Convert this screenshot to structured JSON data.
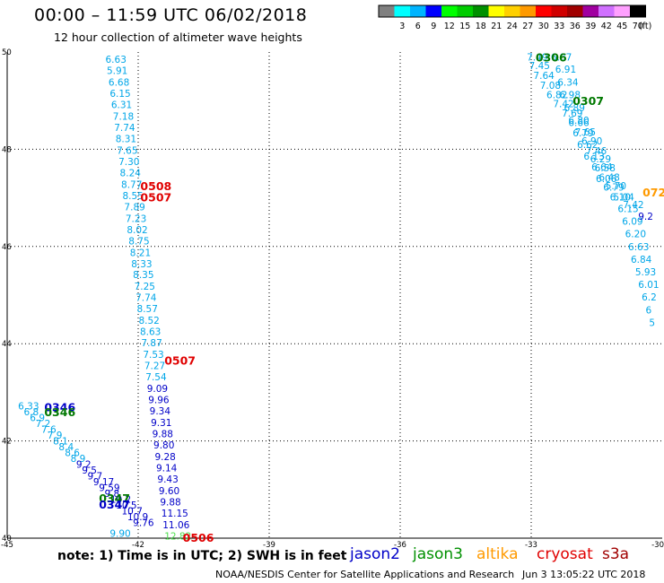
{
  "header": {
    "title": "00:00 – 11:59 UTC 06/02/2018",
    "subtitle": "12 hour collection of altimeter wave heights"
  },
  "legend": {
    "unit_label": "(ft)",
    "bins": [
      {
        "label": "",
        "color": "#808080"
      },
      {
        "label": "3",
        "color": "#00ffff"
      },
      {
        "label": "6",
        "color": "#00b4ff"
      },
      {
        "label": "9",
        "color": "#0000ff"
      },
      {
        "label": "12",
        "color": "#00ff00"
      },
      {
        "label": "15",
        "color": "#00cd00"
      },
      {
        "label": "18",
        "color": "#009000"
      },
      {
        "label": "21",
        "color": "#ffff00"
      },
      {
        "label": "24",
        "color": "#ffd000"
      },
      {
        "label": "27",
        "color": "#ff9a00"
      },
      {
        "label": "30",
        "color": "#ff0000"
      },
      {
        "label": "33",
        "color": "#d00000"
      },
      {
        "label": "36",
        "color": "#a00000"
      },
      {
        "label": "39",
        "color": "#a000a0"
      },
      {
        "label": "42",
        "color": "#d070ff"
      },
      {
        "label": "45",
        "color": "#ffa0ff"
      },
      {
        "label": "70",
        "color": "#000000"
      }
    ]
  },
  "chart_data": {
    "type": "scatter",
    "x_ticks": [
      "-45",
      "-42",
      "-39",
      "-36",
      "-33",
      "-30"
    ],
    "y_ticks": [
      "40",
      "42",
      "44",
      "46",
      "48",
      "50"
    ],
    "xlim": [
      -45,
      -30
    ],
    "ylim": [
      40,
      50
    ],
    "grid": true,
    "tracks": [
      {
        "name": "track-west",
        "color": "#00a6e8",
        "points": [
          {
            "lon": -42.75,
            "lat": 49.85,
            "v": "6.63"
          },
          {
            "lon": -42.72,
            "lat": 49.62,
            "v": "5.91"
          },
          {
            "lon": -42.68,
            "lat": 49.38,
            "v": "6.68"
          },
          {
            "lon": -42.65,
            "lat": 49.15,
            "v": "6.15"
          },
          {
            "lon": -42.62,
            "lat": 48.92,
            "v": "6.31"
          },
          {
            "lon": -42.58,
            "lat": 48.68,
            "v": "7.18"
          },
          {
            "lon": -42.55,
            "lat": 48.45,
            "v": "7.74"
          },
          {
            "lon": -42.52,
            "lat": 48.22,
            "v": "8.31"
          },
          {
            "lon": -42.49,
            "lat": 47.98,
            "v": "7.65"
          },
          {
            "lon": -42.45,
            "lat": 47.75,
            "v": "7.30"
          },
          {
            "lon": -42.42,
            "lat": 47.52,
            "v": "8.24"
          },
          {
            "lon": -42.39,
            "lat": 47.28,
            "v": "8.77"
          },
          {
            "lon": -42.36,
            "lat": 47.05,
            "v": "8.55"
          },
          {
            "lon": -42.32,
            "lat": 46.82,
            "v": "7.89"
          },
          {
            "lon": -42.29,
            "lat": 46.58,
            "v": "7.23"
          },
          {
            "lon": -42.26,
            "lat": 46.35,
            "v": "8.02"
          },
          {
            "lon": -42.22,
            "lat": 46.12,
            "v": "8.75"
          },
          {
            "lon": -42.19,
            "lat": 45.88,
            "v": "8.21"
          },
          {
            "lon": -42.16,
            "lat": 45.65,
            "v": "8.33"
          },
          {
            "lon": -42.12,
            "lat": 45.42,
            "v": "8.35"
          },
          {
            "lon": -42.09,
            "lat": 45.18,
            "v": "7.25"
          },
          {
            "lon": -42.06,
            "lat": 44.95,
            "v": "7.74"
          },
          {
            "lon": -42.03,
            "lat": 44.72,
            "v": "8.57"
          },
          {
            "lon": -41.99,
            "lat": 44.48,
            "v": "8.52"
          },
          {
            "lon": -41.96,
            "lat": 44.25,
            "v": "8.63"
          },
          {
            "lon": -41.93,
            "lat": 44.02,
            "v": "7.87"
          },
          {
            "lon": -41.89,
            "lat": 43.78,
            "v": "7.53"
          },
          {
            "lon": -41.86,
            "lat": 43.55,
            "v": "7.27"
          },
          {
            "lon": -41.83,
            "lat": 43.32,
            "v": "7.54"
          }
        ]
      },
      {
        "name": "track-west-dark",
        "color": "#0000c8",
        "points": [
          {
            "lon": -41.8,
            "lat": 43.08,
            "v": "9.09"
          },
          {
            "lon": -41.77,
            "lat": 42.85,
            "v": "9.96"
          },
          {
            "lon": -41.74,
            "lat": 42.62,
            "v": "9.34"
          },
          {
            "lon": -41.71,
            "lat": 42.38,
            "v": "9.31"
          },
          {
            "lon": -41.68,
            "lat": 42.15,
            "v": "9.88"
          },
          {
            "lon": -41.65,
            "lat": 41.92,
            "v": "9.80"
          },
          {
            "lon": -41.62,
            "lat": 41.68,
            "v": "9.28"
          },
          {
            "lon": -41.59,
            "lat": 41.45,
            "v": "9.14"
          },
          {
            "lon": -41.56,
            "lat": 41.22,
            "v": "9.43"
          },
          {
            "lon": -41.53,
            "lat": 40.98,
            "v": "9.60"
          },
          {
            "lon": -41.5,
            "lat": 40.75,
            "v": "9.88"
          },
          {
            "lon": -41.47,
            "lat": 40.52,
            "v": "11.15"
          },
          {
            "lon": -41.44,
            "lat": 40.28,
            "v": "11.06"
          }
        ]
      },
      {
        "name": "track-west-green",
        "color": "#4fe04f",
        "points": [
          {
            "lon": -41.4,
            "lat": 40.05,
            "v": "12.82"
          }
        ]
      },
      {
        "name": "track-southwest-light",
        "color": "#00a6e8",
        "points": [
          {
            "lon": -44.75,
            "lat": 42.72,
            "v": "6.33"
          },
          {
            "lon": -44.62,
            "lat": 42.6,
            "v": "6.8"
          },
          {
            "lon": -44.48,
            "lat": 42.48,
            "v": "6.9"
          },
          {
            "lon": -44.35,
            "lat": 42.36,
            "v": "7.2"
          },
          {
            "lon": -44.22,
            "lat": 42.24,
            "v": "7.6"
          },
          {
            "lon": -44.08,
            "lat": 42.12,
            "v": "7.9"
          },
          {
            "lon": -43.95,
            "lat": 42.0,
            "v": "8.1"
          },
          {
            "lon": -43.82,
            "lat": 41.88,
            "v": "8.4"
          },
          {
            "lon": -43.68,
            "lat": 41.76,
            "v": "8.6"
          },
          {
            "lon": -43.55,
            "lat": 41.64,
            "v": "8.9"
          }
        ]
      },
      {
        "name": "track-southwest-dark",
        "color": "#0000c8",
        "points": [
          {
            "lon": -43.42,
            "lat": 41.52,
            "v": "9.2"
          },
          {
            "lon": -43.29,
            "lat": 41.4,
            "v": "9.5"
          },
          {
            "lon": -43.16,
            "lat": 41.28,
            "v": "9.7"
          },
          {
            "lon": -43.03,
            "lat": 41.16,
            "v": "9.17"
          },
          {
            "lon": -42.9,
            "lat": 41.04,
            "v": "9.59"
          },
          {
            "lon": -42.77,
            "lat": 40.92,
            "v": "9.8"
          },
          {
            "lon": -42.64,
            "lat": 40.8,
            "v": "10.2"
          },
          {
            "lon": -42.51,
            "lat": 40.68,
            "v": "10.5"
          },
          {
            "lon": -42.38,
            "lat": 40.56,
            "v": "10.7"
          },
          {
            "lon": -42.25,
            "lat": 40.44,
            "v": "10.9"
          },
          {
            "lon": -42.12,
            "lat": 40.32,
            "v": "9.76"
          }
        ]
      },
      {
        "name": "track-southwest-tail",
        "color": "#00a6e8",
        "points": [
          {
            "lon": -42.65,
            "lat": 40.1,
            "v": "9.90"
          }
        ]
      },
      {
        "name": "track-northeast",
        "color": "#00a6e8",
        "points": [
          {
            "lon": -33.1,
            "lat": 49.9,
            "v": "7.49"
          },
          {
            "lon": -33.05,
            "lat": 49.72,
            "v": "7.45"
          },
          {
            "lon": -32.95,
            "lat": 49.52,
            "v": "7.64"
          },
          {
            "lon": -32.8,
            "lat": 49.32,
            "v": "7.08"
          },
          {
            "lon": -32.65,
            "lat": 49.12,
            "v": "6.82"
          },
          {
            "lon": -32.5,
            "lat": 48.94,
            "v": "7.42"
          },
          {
            "lon": -32.3,
            "lat": 48.75,
            "v": "7.69"
          },
          {
            "lon": -32.15,
            "lat": 48.55,
            "v": "6.66"
          },
          {
            "lon": -32.0,
            "lat": 48.36,
            "v": "7.65"
          },
          {
            "lon": -31.85,
            "lat": 48.17,
            "v": "6.90"
          },
          {
            "lon": -31.75,
            "lat": 47.97,
            "v": "7.46"
          },
          {
            "lon": -31.65,
            "lat": 47.8,
            "v": "6.29"
          },
          {
            "lon": -31.55,
            "lat": 47.62,
            "v": "6.58"
          },
          {
            "lon": -31.45,
            "lat": 47.43,
            "v": "6.48"
          },
          {
            "lon": -31.3,
            "lat": 47.25,
            "v": "5.70"
          },
          {
            "lon": -31.12,
            "lat": 47.02,
            "v": "5.04"
          },
          {
            "lon": -31.02,
            "lat": 46.78,
            "v": "6.15"
          },
          {
            "lon": -30.92,
            "lat": 46.52,
            "v": "6.09"
          },
          {
            "lon": -30.85,
            "lat": 46.26,
            "v": "6.20"
          },
          {
            "lon": -30.78,
            "lat": 46.0,
            "v": "6.63"
          },
          {
            "lon": -30.72,
            "lat": 45.74,
            "v": "6.84"
          },
          {
            "lon": -30.62,
            "lat": 45.48,
            "v": "5.93"
          },
          {
            "lon": -30.55,
            "lat": 45.22,
            "v": "6.01"
          },
          {
            "lon": -30.47,
            "lat": 44.96,
            "v": "6.2"
          },
          {
            "lon": -30.38,
            "lat": 44.7,
            "v": "6"
          },
          {
            "lon": -30.3,
            "lat": 44.44,
            "v": "5"
          }
        ]
      },
      {
        "name": "track-northeast-right",
        "color": "#00a6e8",
        "points": [
          {
            "lon": -32.55,
            "lat": 49.9,
            "v": "6.87"
          },
          {
            "lon": -32.45,
            "lat": 49.65,
            "v": "6.91"
          },
          {
            "lon": -32.4,
            "lat": 49.38,
            "v": "6.34"
          },
          {
            "lon": -32.35,
            "lat": 49.12,
            "v": "6.98"
          },
          {
            "lon": -32.25,
            "lat": 48.86,
            "v": "6.89"
          },
          {
            "lon": -32.15,
            "lat": 48.6,
            "v": "6.80"
          },
          {
            "lon": -32.05,
            "lat": 48.34,
            "v": "6.79"
          },
          {
            "lon": -31.95,
            "lat": 48.1,
            "v": "6.62"
          },
          {
            "lon": -31.8,
            "lat": 47.86,
            "v": "6.13"
          },
          {
            "lon": -31.62,
            "lat": 47.64,
            "v": "6.64"
          },
          {
            "lon": -31.52,
            "lat": 47.4,
            "v": "6.06"
          },
          {
            "lon": -31.35,
            "lat": 47.22,
            "v": "6.79"
          },
          {
            "lon": -31.2,
            "lat": 47.02,
            "v": "6.10"
          },
          {
            "lon": -30.9,
            "lat": 46.86,
            "v": "7.42"
          }
        ]
      },
      {
        "name": "track-northeast-dark",
        "color": "#0000c8",
        "points": [
          {
            "lon": -30.55,
            "lat": 46.62,
            "v": "9.2"
          }
        ]
      }
    ],
    "pass_labels": [
      {
        "lon": -41.95,
        "lat": 47.25,
        "text": "0508",
        "color": "#e00000"
      },
      {
        "lon": -41.95,
        "lat": 47.02,
        "text": "0507",
        "color": "#e00000"
      },
      {
        "lon": -41.4,
        "lat": 43.66,
        "text": "0507",
        "color": "#e00000"
      },
      {
        "lon": -40.98,
        "lat": 40.02,
        "text": "0506",
        "color": "#e00000"
      },
      {
        "lon": -44.15,
        "lat": 42.7,
        "text": "0346",
        "color": "#0000c8"
      },
      {
        "lon": -44.15,
        "lat": 42.6,
        "text": "0346",
        "color": "#007800"
      },
      {
        "lon": -42.9,
        "lat": 40.83,
        "text": "0347",
        "color": "#007800"
      },
      {
        "lon": -42.9,
        "lat": 40.7,
        "text": "0347",
        "color": "#0000c8"
      },
      {
        "lon": -32.9,
        "lat": 49.9,
        "text": "0306",
        "color": "#007800"
      },
      {
        "lon": -32.05,
        "lat": 49.0,
        "text": "0307",
        "color": "#007800"
      },
      {
        "lon": -30.45,
        "lat": 47.12,
        "text": "072",
        "color": "#ff9a00"
      }
    ]
  },
  "note": "note:  1) Time is in UTC;  2) SWH is in feet",
  "satellites": [
    {
      "label": "jason2",
      "color": "#0000c8"
    },
    {
      "label": "jason3",
      "color": "#009000"
    },
    {
      "label": "altika",
      "color": "#ff9a00"
    },
    {
      "label": "cryosat",
      "color": "#e00000"
    },
    {
      "label": "s3a",
      "color": "#a00000"
    }
  ],
  "footer": {
    "credit": "NOAA/NESDIS Center for Satellite Applications and Research",
    "date": "Jun  3 13:05:22 UTC 2018"
  }
}
